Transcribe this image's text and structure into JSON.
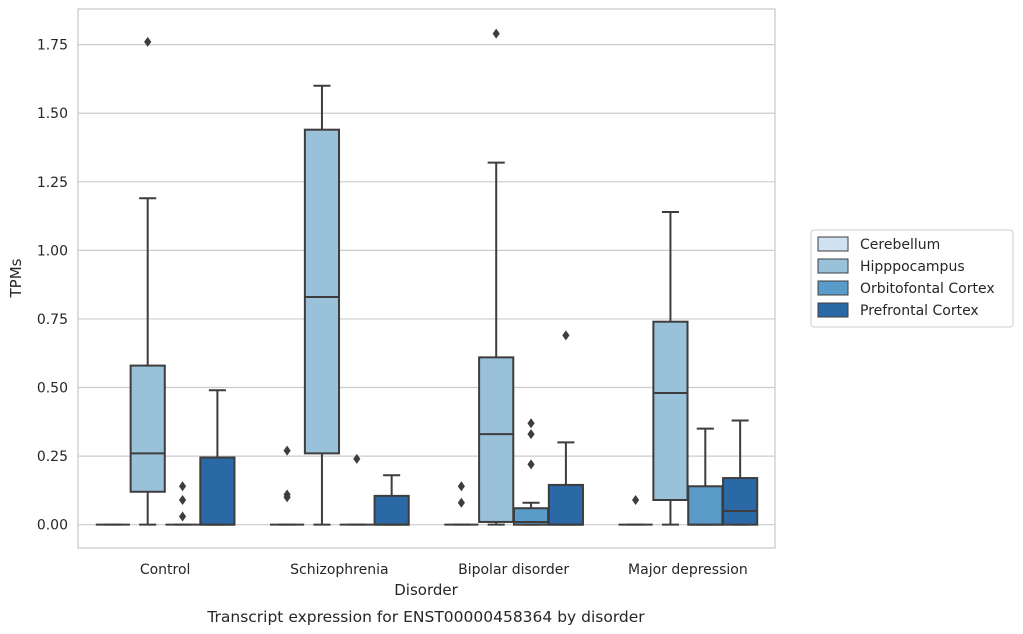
{
  "chart_data": {
    "type": "box",
    "caption": "Transcript expression for ENST00000458364 by disorder",
    "xlabel": "Disorder",
    "ylabel": "TPMs",
    "ylim": [
      -0.085,
      1.88
    ],
    "yticks": [
      0.0,
      0.25,
      0.5,
      0.75,
      1.0,
      1.25,
      1.5,
      1.75
    ],
    "ytick_labels": [
      "0.00",
      "0.25",
      "0.50",
      "0.75",
      "1.00",
      "1.25",
      "1.50",
      "1.75"
    ],
    "grid": "horizontal",
    "legend_position": "right",
    "categories": [
      "Control",
      "Schizophrenia",
      "Bipolar disorder",
      "Major depression"
    ],
    "series": [
      {
        "name": "Cerebellum",
        "color": "#d0e1f2",
        "boxes": [
          {
            "q1": 0,
            "median": 0,
            "q3": 0,
            "whisker_low": 0,
            "whisker_high": 0,
            "outliers": []
          },
          {
            "q1": 0,
            "median": 0,
            "q3": 0,
            "whisker_low": 0,
            "whisker_high": 0,
            "outliers": [
              0.1,
              0.11,
              0.27
            ]
          },
          {
            "q1": 0,
            "median": 0,
            "q3": 0,
            "whisker_low": 0,
            "whisker_high": 0,
            "outliers": [
              0.08,
              0.14
            ]
          },
          {
            "q1": 0,
            "median": 0,
            "q3": 0,
            "whisker_low": 0,
            "whisker_high": 0,
            "outliers": [
              0.09
            ]
          }
        ]
      },
      {
        "name": "Hipppocampus",
        "color": "#9ac1da",
        "boxes": [
          {
            "q1": 0.12,
            "median": 0.26,
            "q3": 0.58,
            "whisker_low": 0,
            "whisker_high": 1.19,
            "outliers": [
              1.76
            ]
          },
          {
            "q1": 0.26,
            "median": 0.83,
            "q3": 1.44,
            "whisker_low": 0,
            "whisker_high": 1.6,
            "outliers": []
          },
          {
            "q1": 0.01,
            "median": 0.33,
            "q3": 0.61,
            "whisker_low": 0,
            "whisker_high": 1.32,
            "outliers": [
              1.79
            ]
          },
          {
            "q1": 0.09,
            "median": 0.48,
            "q3": 0.74,
            "whisker_low": 0,
            "whisker_high": 1.14,
            "outliers": []
          }
        ]
      },
      {
        "name": "Orbitofontal Cortex",
        "color": "#5a9bc9",
        "boxes": [
          {
            "q1": 0,
            "median": 0,
            "q3": 0,
            "whisker_low": 0,
            "whisker_high": 0,
            "outliers": [
              0.03,
              0.09,
              0.14
            ]
          },
          {
            "q1": 0,
            "median": 0,
            "q3": 0,
            "whisker_low": 0,
            "whisker_high": 0,
            "outliers": [
              0.24
            ]
          },
          {
            "q1": 0,
            "median": 0.01,
            "q3": 0.06,
            "whisker_low": 0,
            "whisker_high": 0.08,
            "outliers": [
              0.22,
              0.33,
              0.37
            ]
          },
          {
            "q1": 0,
            "median": 0,
            "q3": 0.14,
            "whisker_low": 0,
            "whisker_high": 0.35,
            "outliers": []
          }
        ]
      },
      {
        "name": "Prefrontal Cortex",
        "color": "#2a69a6",
        "boxes": [
          {
            "q1": 0,
            "median": 0,
            "q3": 0.245,
            "whisker_low": 0,
            "whisker_high": 0.49,
            "outliers": []
          },
          {
            "q1": 0,
            "median": 0,
            "q3": 0.105,
            "whisker_low": 0,
            "whisker_high": 0.18,
            "outliers": []
          },
          {
            "q1": 0,
            "median": 0,
            "q3": 0.145,
            "whisker_low": 0,
            "whisker_high": 0.3,
            "outliers": [
              0.69
            ]
          },
          {
            "q1": 0,
            "median": 0.05,
            "q3": 0.17,
            "whisker_low": 0,
            "whisker_high": 0.38,
            "outliers": []
          }
        ]
      }
    ]
  }
}
